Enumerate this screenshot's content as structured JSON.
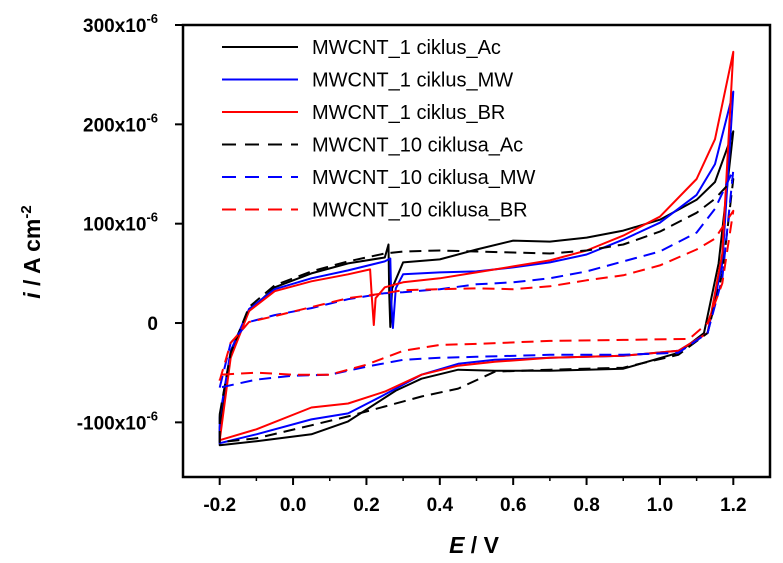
{
  "chart_data": {
    "type": "line",
    "xlabel": {
      "symbol": "E",
      "unit": " / V"
    },
    "ylabel": {
      "symbol": "i",
      "unit_main": " / A cm",
      "unit_sup": "-2"
    },
    "xlim": [
      -0.3,
      1.3
    ],
    "ylim": [
      -0.000155,
      0.0003
    ],
    "x_ticks": [
      -0.2,
      0.0,
      0.2,
      0.4,
      0.6,
      0.8,
      1.0,
      1.2
    ],
    "x_tick_labels": [
      "-0.2",
      "0.0",
      "0.2",
      "0.4",
      "0.6",
      "0.8",
      "1.0",
      "1.2"
    ],
    "y_ticks": [
      {
        "value": 0.0003,
        "main": "300x10",
        "sup": "-6"
      },
      {
        "value": 0.0002,
        "main": "200x10",
        "sup": "-6"
      },
      {
        "value": 0.0001,
        "main": "100x10",
        "sup": "-6"
      },
      {
        "value": 0,
        "main": "0",
        "sup": ""
      },
      {
        "value": -0.0001,
        "main": "-100x10",
        "sup": "-6"
      }
    ],
    "legend_position": "top-left",
    "series": [
      {
        "name": "MWCNT_1 ciklus_Ac",
        "color": "#000000",
        "dash": "solid",
        "anodic": [
          [
            -0.2,
            -0.000105
          ],
          [
            -0.17,
            -3e-05
          ],
          [
            -0.12,
            1.2e-05
          ],
          [
            -0.05,
            3.6e-05
          ],
          [
            0.05,
            5e-05
          ],
          [
            0.15,
            6e-05
          ],
          [
            0.25,
            6.6e-05
          ],
          [
            0.26,
            7.9e-05
          ],
          [
            0.262,
            3e-05
          ],
          [
            0.265,
            -4e-06
          ],
          [
            0.27,
            3.5e-05
          ],
          [
            0.3,
            6.1e-05
          ],
          [
            0.4,
            6.4e-05
          ],
          [
            0.5,
            7.4e-05
          ],
          [
            0.6,
            8.3e-05
          ],
          [
            0.7,
            8.2e-05
          ],
          [
            0.8,
            8.6e-05
          ],
          [
            0.9,
            9.3e-05
          ],
          [
            1.0,
            0.000104
          ],
          [
            1.1,
            0.000124
          ],
          [
            1.15,
            0.000142
          ],
          [
            1.2,
            0.000193
          ]
        ],
        "cathodic": [
          [
            1.2,
            0.000193
          ],
          [
            1.16,
            6e-05
          ],
          [
            1.12,
            -1e-05
          ],
          [
            1.05,
            -3e-05
          ],
          [
            0.9,
            -4.6e-05
          ],
          [
            0.7,
            -4.8e-05
          ],
          [
            0.55,
            -4.8e-05
          ],
          [
            0.45,
            -4.7e-05
          ],
          [
            0.35,
            -5.6e-05
          ],
          [
            0.28,
            -6.8e-05
          ],
          [
            0.15,
            -9.9e-05
          ],
          [
            0.05,
            -0.000112
          ],
          [
            -0.1,
            -0.000119
          ],
          [
            -0.2,
            -0.000123
          ]
        ]
      },
      {
        "name": "MWCNT_1 ciklus_MW",
        "color": "#0000ff",
        "dash": "solid",
        "anodic": [
          [
            -0.2,
            -9.5e-05
          ],
          [
            -0.17,
            -2.8e-05
          ],
          [
            -0.12,
            1.4e-05
          ],
          [
            -0.05,
            3.4e-05
          ],
          [
            0.05,
            4.5e-05
          ],
          [
            0.15,
            5.3e-05
          ],
          [
            0.25,
            6.2e-05
          ],
          [
            0.265,
            6.5e-05
          ],
          [
            0.268,
            2e-05
          ],
          [
            0.272,
            -5e-06
          ],
          [
            0.28,
            3.5e-05
          ],
          [
            0.3,
            4.9e-05
          ],
          [
            0.4,
            5.1e-05
          ],
          [
            0.5,
            5.2e-05
          ],
          [
            0.6,
            5.6e-05
          ],
          [
            0.7,
            6.1e-05
          ],
          [
            0.8,
            6.9e-05
          ],
          [
            0.9,
            8.4e-05
          ],
          [
            1.0,
            0.000101
          ],
          [
            1.1,
            0.000129
          ],
          [
            1.15,
            0.00016
          ],
          [
            1.2,
            0.000233
          ]
        ],
        "cathodic": [
          [
            1.2,
            0.000233
          ],
          [
            1.17,
            6e-05
          ],
          [
            1.13,
            -1e-05
          ],
          [
            1.05,
            -2.8e-05
          ],
          [
            0.9,
            -3.3e-05
          ],
          [
            0.7,
            -3.5e-05
          ],
          [
            0.55,
            -3.7e-05
          ],
          [
            0.45,
            -4.1e-05
          ],
          [
            0.35,
            -5.2e-05
          ],
          [
            0.25,
            -7.2e-05
          ],
          [
            0.15,
            -9.1e-05
          ],
          [
            0.05,
            -9.7e-05
          ],
          [
            -0.1,
            -0.000112
          ],
          [
            -0.2,
            -0.000121
          ]
        ]
      },
      {
        "name": "MWCNT_1 ciklus_BR",
        "color": "#ff0000",
        "dash": "solid",
        "anodic": [
          [
            -0.2,
            -0.000118
          ],
          [
            -0.17,
            -3.5e-05
          ],
          [
            -0.12,
            1.2e-05
          ],
          [
            -0.05,
            3.2e-05
          ],
          [
            0.05,
            4.2e-05
          ],
          [
            0.15,
            4.9e-05
          ],
          [
            0.21,
            5.4e-05
          ],
          [
            0.215,
            2.5e-05
          ],
          [
            0.22,
            -2e-06
          ],
          [
            0.225,
            2.5e-05
          ],
          [
            0.25,
            3.6e-05
          ],
          [
            0.3,
            4.1e-05
          ],
          [
            0.4,
            4.5e-05
          ],
          [
            0.5,
            5.1e-05
          ],
          [
            0.6,
            5.7e-05
          ],
          [
            0.7,
            6.3e-05
          ],
          [
            0.8,
            7.3e-05
          ],
          [
            0.9,
            8.8e-05
          ],
          [
            1.0,
            0.000107
          ],
          [
            1.1,
            0.000145
          ],
          [
            1.15,
            0.000185
          ],
          [
            1.2,
            0.000273
          ]
        ],
        "cathodic": [
          [
            1.2,
            0.000273
          ],
          [
            1.17,
            7e-05
          ],
          [
            1.13,
            -1e-05
          ],
          [
            1.05,
            -2.8e-05
          ],
          [
            0.9,
            -3.3e-05
          ],
          [
            0.7,
            -3.5e-05
          ],
          [
            0.55,
            -3.9e-05
          ],
          [
            0.45,
            -4.3e-05
          ],
          [
            0.35,
            -5.2e-05
          ],
          [
            0.25,
            -6.9e-05
          ],
          [
            0.15,
            -8.1e-05
          ],
          [
            0.05,
            -8.5e-05
          ],
          [
            -0.1,
            -0.000107
          ],
          [
            -0.2,
            -0.000118
          ]
        ]
      },
      {
        "name": "MWCNT_10 ciklusa_Ac",
        "color": "#000000",
        "dash": "dashed",
        "anodic": [
          [
            -0.2,
            -9.2e-05
          ],
          [
            -0.17,
            -3e-05
          ],
          [
            -0.12,
            1.6e-05
          ],
          [
            -0.05,
            3.8e-05
          ],
          [
            0.05,
            5.2e-05
          ],
          [
            0.15,
            6.2e-05
          ],
          [
            0.25,
            7e-05
          ],
          [
            0.3,
            7.2e-05
          ],
          [
            0.4,
            7.3e-05
          ],
          [
            0.5,
            7.2e-05
          ],
          [
            0.6,
            7.1e-05
          ],
          [
            0.7,
            7e-05
          ],
          [
            0.8,
            7.3e-05
          ],
          [
            0.9,
            7.9e-05
          ],
          [
            1.0,
            9.2e-05
          ],
          [
            1.1,
            0.000111
          ],
          [
            1.15,
            0.000125
          ],
          [
            1.2,
            0.000145
          ]
        ],
        "cathodic": [
          [
            1.2,
            0.000145
          ],
          [
            1.17,
            5e-05
          ],
          [
            1.13,
            -1e-05
          ],
          [
            1.05,
            -3.2e-05
          ],
          [
            0.9,
            -4.5e-05
          ],
          [
            0.7,
            -4.7e-05
          ],
          [
            0.55,
            -4.9e-05
          ],
          [
            0.45,
            -6.6e-05
          ],
          [
            0.35,
            -7.4e-05
          ],
          [
            0.25,
            -8.4e-05
          ],
          [
            0.15,
            -9.4e-05
          ],
          [
            0.05,
            -0.000103
          ],
          [
            -0.1,
            -0.000116
          ],
          [
            -0.2,
            -0.00012
          ]
        ]
      },
      {
        "name": "MWCNT_10 ciklusa_MW",
        "color": "#0000ff",
        "dash": "dashed",
        "anodic": [
          [
            -0.2,
            -6.5e-05
          ],
          [
            -0.17,
            -2e-05
          ],
          [
            -0.12,
            1e-06
          ],
          [
            -0.05,
            8e-06
          ],
          [
            0.05,
            1.5e-05
          ],
          [
            0.15,
            2.4e-05
          ],
          [
            0.25,
            3e-05
          ],
          [
            0.3,
            3.1e-05
          ],
          [
            0.4,
            3.4e-05
          ],
          [
            0.5,
            3.9e-05
          ],
          [
            0.6,
            4.1e-05
          ],
          [
            0.7,
            4.5e-05
          ],
          [
            0.8,
            5.2e-05
          ],
          [
            0.9,
            6.2e-05
          ],
          [
            1.0,
            7.2e-05
          ],
          [
            1.1,
            9.1e-05
          ],
          [
            1.15,
            0.000115
          ],
          [
            1.2,
            0.000154
          ]
        ],
        "cathodic": [
          [
            1.2,
            0.000154
          ],
          [
            1.17,
            4.5e-05
          ],
          [
            1.13,
            -1e-05
          ],
          [
            1.05,
            -3e-05
          ],
          [
            0.9,
            -3.2e-05
          ],
          [
            0.7,
            -3.2e-05
          ],
          [
            0.5,
            -3.4e-05
          ],
          [
            0.4,
            -3.5e-05
          ],
          [
            0.3,
            -3.7e-05
          ],
          [
            0.2,
            -4.4e-05
          ],
          [
            0.1,
            -5.2e-05
          ],
          [
            0.0,
            -5.3e-05
          ],
          [
            -0.1,
            -5.7e-05
          ],
          [
            -0.2,
            -6.5e-05
          ]
        ]
      },
      {
        "name": "MWCNT_10 ciklusa_BR",
        "color": "#ff0000",
        "dash": "dashed",
        "anodic": [
          [
            -0.2,
            -5.8e-05
          ],
          [
            -0.17,
            -2e-05
          ],
          [
            -0.12,
            1e-06
          ],
          [
            -0.05,
            7e-06
          ],
          [
            0.05,
            1.6e-05
          ],
          [
            0.15,
            2.5e-05
          ],
          [
            0.25,
            3e-05
          ],
          [
            0.3,
            3.3e-05
          ],
          [
            0.4,
            3.4e-05
          ],
          [
            0.5,
            3.5e-05
          ],
          [
            0.6,
            3.4e-05
          ],
          [
            0.7,
            3.7e-05
          ],
          [
            0.8,
            4.3e-05
          ],
          [
            0.9,
            4.8e-05
          ],
          [
            1.0,
            5.8e-05
          ],
          [
            1.1,
            7.4e-05
          ],
          [
            1.15,
            8.5e-05
          ],
          [
            1.2,
            0.000113
          ]
        ],
        "cathodic": [
          [
            1.2,
            0.000113
          ],
          [
            1.17,
            4e-05
          ],
          [
            1.13,
            0.0
          ],
          [
            1.08,
            -1.6e-05
          ],
          [
            0.9,
            -1.7e-05
          ],
          [
            0.7,
            -1.8e-05
          ],
          [
            0.5,
            -2.1e-05
          ],
          [
            0.4,
            -2.2e-05
          ],
          [
            0.3,
            -2.8e-05
          ],
          [
            0.2,
            -4.2e-05
          ],
          [
            0.1,
            -5.2e-05
          ],
          [
            0.0,
            -5.2e-05
          ],
          [
            -0.1,
            -5e-05
          ],
          [
            -0.2,
            -5.2e-05
          ]
        ]
      }
    ]
  }
}
